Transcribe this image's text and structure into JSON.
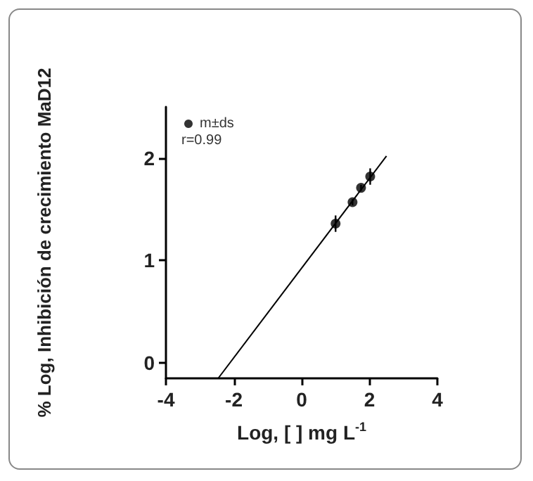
{
  "chart_data": {
    "type": "scatter",
    "xlabel": "Log, [ ] mg L$^{-1}$",
    "ylabel": "% Log, Inhibición de crecimiento MaD12",
    "series": [
      {
        "name": "m±ds",
        "marker": "circle",
        "color": "#000000",
        "x": [
          1.0,
          1.5,
          1.75,
          2.02
        ],
        "values": [
          1.36,
          1.57,
          1.71,
          1.82
        ],
        "errors": [
          0.08,
          0.03,
          0.03,
          0.08
        ]
      },
      {
        "type": "line",
        "marker": "none",
        "color": "#000000",
        "x": [
          -2.46,
          2.5
        ],
        "values": [
          -0.15,
          2.02
        ]
      }
    ],
    "annotations": [
      "r=0.99"
    ],
    "xlim": [
      -4,
      4
    ],
    "xticks": [
      -4,
      -2,
      0,
      2,
      4
    ],
    "ylim": [
      -0.15,
      2.5
    ],
    "yticks": [
      0,
      1,
      2
    ],
    "grid": false,
    "legend": "top left",
    "line_style": "solid"
  }
}
